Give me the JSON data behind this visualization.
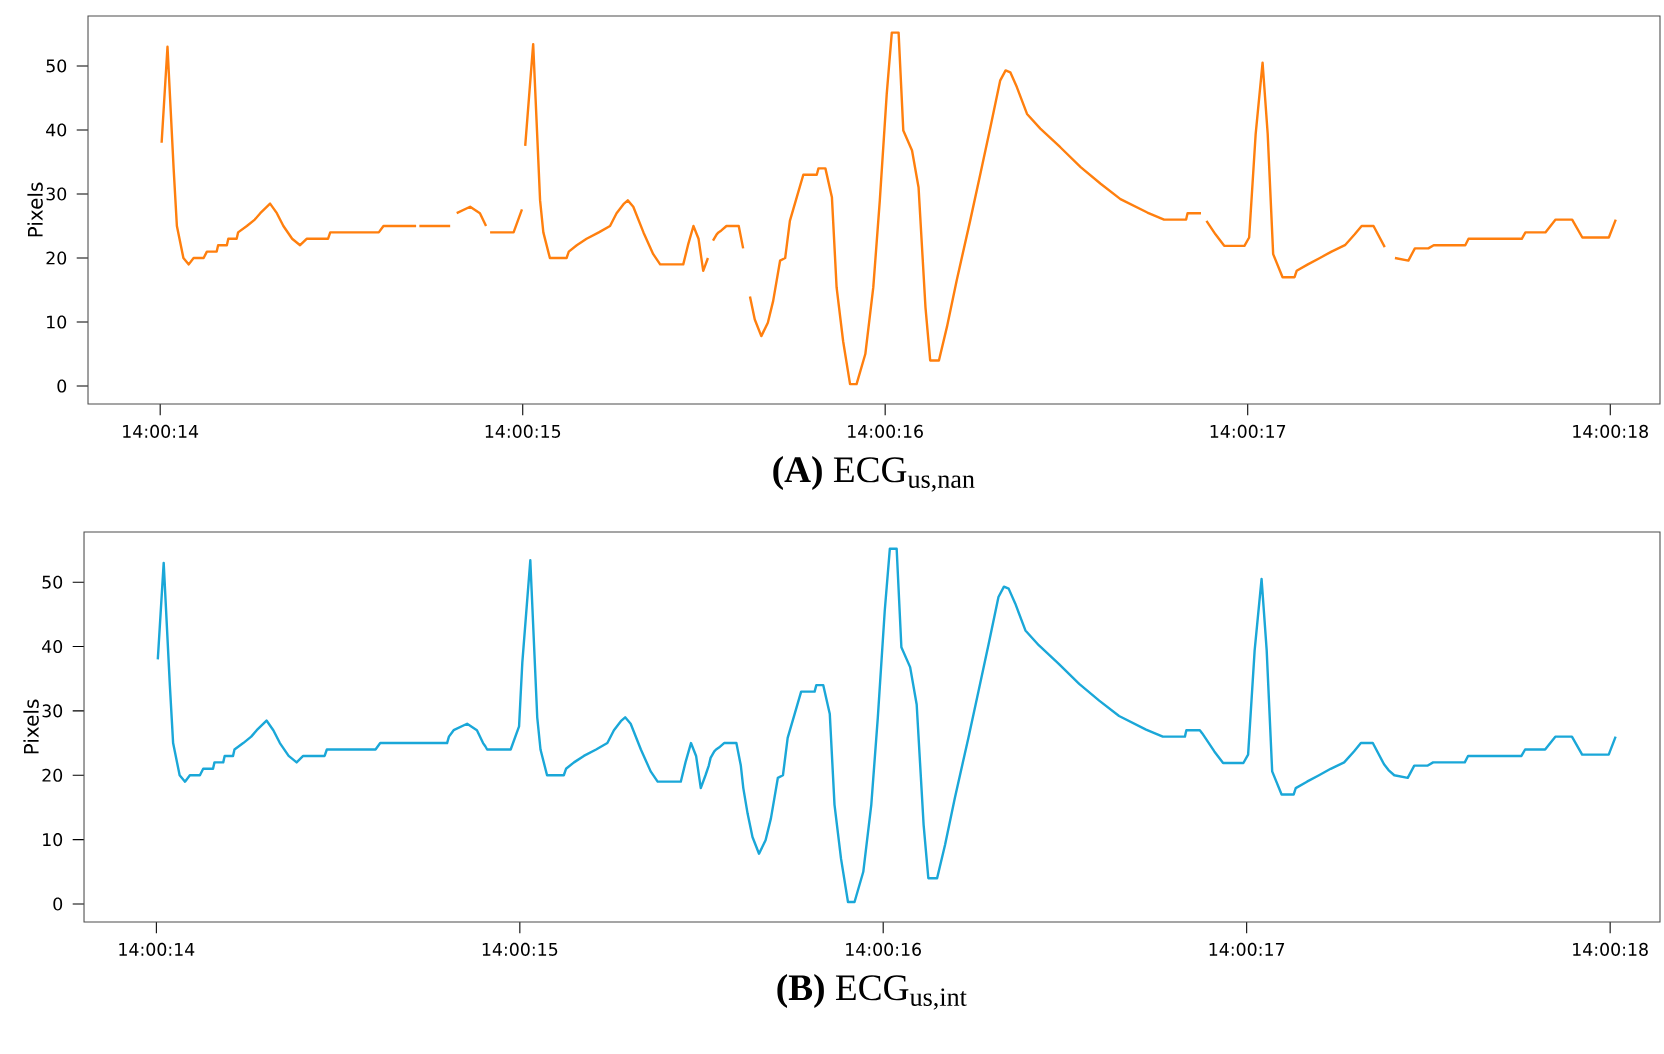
{
  "chart_data": [
    {
      "type": "line",
      "title": "**(A)** ECG$_{us,nan}$",
      "ylabel": "Pixels",
      "x": [
        14.00389,
        14.0038945,
        14.0038992,
        14.0039017,
        14.0039067,
        14.0039108,
        14.0039145,
        14.0039222,
        14.0039247,
        14.0039322,
        14.0039333,
        14.00394,
        14.0039411,
        14.0039475,
        14.0039486,
        14.0039553,
        14.0039614,
        14.0039656,
        14.0039731,
        14.0039783,
        14.0039833,
        14.00399,
        14.0039961,
        14.0040011,
        14.0040175,
        14.0040192,
        14.0040564,
        14.00406,
        14.004085,
        14.0040861,
        14.0040875,
        14.0041111,
        14.0041125,
        14.0041161,
        14.0041264,
        14.0041339,
        14.0041386,
        14.0041403,
        14.0041417,
        14.0041597,
        14.0041661,
        14.0041672,
        14.0041686,
        14.0041747,
        14.00418,
        14.0041825,
        14.0041875,
        14.0042003,
        14.004202,
        14.0042081,
        14.0042156,
        14.004225,
        14.0042336,
        14.0042386,
        14.0042439,
        14.0042472,
        14.0042514,
        14.0042592,
        14.0042667,
        14.004272,
        14.0042897,
        14.0042933,
        14.0042975,
        14.0043014,
        14.004305,
        14.0043086,
        14.0043111,
        14.0043125,
        14.0043153,
        14.0043167,
        14.0043189,
        14.0043228,
        14.0043322,
        14.0043356,
        14.0043375,
        14.0043408,
        14.0043445,
        14.0043495,
        14.0043545,
        14.0043586,
        14.0043639,
        14.0043678,
        14.0043714,
        14.0043767,
        14.0043817,
        14.004392,
        14.0043933,
        14.0043986,
        14.0044036,
        14.0044072,
        14.0044122,
        14.0044175,
        14.0044225,
        14.0044292,
        14.0044353,
        14.0044403,
        14.0044456,
        14.0044495,
        14.0044547,
        14.0044583,
        14.004465,
        14.00447,
        14.0044753,
        14.0044789,
        14.0044856,
        14.0044917,
        14.0044992,
        14.0045095,
        14.0045172,
        14.004525,
        14.0045325,
        14.0045367,
        14.0045403,
        14.0045453,
        14.0045531,
        14.0045633,
        14.0045786,
        14.0045942,
        14.0046095,
        14.0046247,
        14.0046453,
        14.0046581,
        14.004675,
        14.0046761,
        14.0046864,
        14.0046883,
        14.0046906,
        14.0046975,
        14.0047042,
        14.0047197,
        14.0047233,
        14.0047283,
        14.0047336,
        14.0047375,
        14.0047417,
        14.0047489,
        14.0047581,
        14.0047597,
        14.0047683,
        14.0047775,
        14.0047864,
        14.0047967,
        14.0048042,
        14.0048095,
        14.0048186,
        14.0048272,
        14.0048306,
        14.004835,
        14.0048453,
        14.0048503,
        14.0048606,
        14.0048647,
        14.0048889,
        14.0048914,
        14.0049322,
        14.004935,
        14.0049503,
        14.0049581,
        14.0049708,
        14.0049786,
        14.0049989,
        14.0050042
      ],
      "series": [
        {
          "color": "#ff7f0e",
          "values": [
            38,
            53,
            34,
            25,
            20,
            19,
            20,
            20,
            21,
            21,
            22,
            22,
            23,
            23,
            24,
            25,
            26,
            27,
            28.5,
            27,
            25,
            23,
            22,
            23,
            23,
            24,
            24,
            25,
            25,
            null,
            25,
            25,
            null,
            27,
            28,
            27,
            25,
            null,
            24,
            24,
            27.6,
            null,
            37.5,
            53.4,
            29,
            24,
            20,
            20,
            21,
            22,
            23,
            24,
            25,
            27,
            28.4,
            29,
            28,
            24,
            20.6,
            19,
            19,
            22,
            25,
            23,
            18,
            20,
            null,
            22.7,
            23.7,
            24,
            24.3,
            25,
            25,
            21.5,
            null,
            14,
            10.4,
            7.8,
            9.9,
            13.3,
            19.6,
            20,
            25.8,
            29.5,
            33,
            33,
            34,
            34,
            29.5,
            15.4,
            7,
            0.3,
            0.3,
            5,
            15.4,
            29,
            45.6,
            55.2,
            55.2,
            39.9,
            36.8,
            31,
            12.3,
            4,
            4,
            9.2,
            16.5,
            25.8,
            33,
            40.4,
            47.7,
            49.3,
            49,
            46.7,
            42.5,
            40.2,
            37.3,
            34.2,
            31.6,
            29.2,
            27.1,
            26,
            26,
            27,
            27,
            null,
            25.8,
            23.7,
            21.9,
            21.9,
            23.2,
            39.4,
            50.5,
            39.4,
            20.6,
            17,
            17,
            18,
            19,
            20,
            21,
            22,
            23.7,
            25,
            25,
            21.7,
            null,
            20,
            19.6,
            21.5,
            21.5,
            22,
            22,
            23,
            23,
            24,
            24,
            26,
            26,
            23.2,
            23.2,
            26
          ]
        }
      ],
      "xlim": [
        14.0038336,
        14.0050381
      ],
      "ylim": [
        -2.8,
        57.8
      ],
      "xticks": [
        {
          "value": 14.0038889,
          "label": "14:00:14"
        },
        {
          "value": 14.0041667,
          "label": "14:00:15"
        },
        {
          "value": 14.0044444,
          "label": "14:00:16"
        },
        {
          "value": 14.0047222,
          "label": "14:00:17"
        },
        {
          "value": 14.005,
          "label": "14:00:18"
        }
      ],
      "yticks": [
        0,
        10,
        20,
        30,
        40,
        50
      ]
    },
    {
      "type": "line",
      "title": "**(B)** ECG$_{us,int}$",
      "ylabel": "Pixels",
      "x": [
        14.00389,
        14.0038945,
        14.0038992,
        14.0039017,
        14.0039067,
        14.0039108,
        14.0039145,
        14.0039222,
        14.0039247,
        14.0039322,
        14.0039333,
        14.00394,
        14.0039411,
        14.0039475,
        14.0039486,
        14.0039553,
        14.0039614,
        14.0039656,
        14.0039731,
        14.0039783,
        14.0039833,
        14.00399,
        14.0039961,
        14.0040011,
        14.0040175,
        14.0040192,
        14.0040564,
        14.00406,
        14.004085,
        14.0040861,
        14.0040875,
        14.0041111,
        14.0041125,
        14.0041161,
        14.0041264,
        14.0041339,
        14.0041386,
        14.0041403,
        14.0041417,
        14.0041597,
        14.0041661,
        14.0041672,
        14.0041686,
        14.0041747,
        14.00418,
        14.0041825,
        14.0041875,
        14.0042003,
        14.004202,
        14.0042081,
        14.0042156,
        14.004225,
        14.0042336,
        14.0042386,
        14.0042439,
        14.0042472,
        14.0042514,
        14.0042592,
        14.0042667,
        14.004272,
        14.0042897,
        14.0042933,
        14.0042975,
        14.0043014,
        14.004305,
        14.0043086,
        14.0043111,
        14.0043125,
        14.0043153,
        14.0043167,
        14.0043189,
        14.0043228,
        14.0043322,
        14.0043356,
        14.0043375,
        14.0043408,
        14.0043445,
        14.0043495,
        14.0043545,
        14.0043586,
        14.0043639,
        14.0043678,
        14.0043714,
        14.0043767,
        14.0043817,
        14.004392,
        14.0043933,
        14.0043986,
        14.0044036,
        14.0044072,
        14.0044122,
        14.0044175,
        14.0044225,
        14.0044292,
        14.0044353,
        14.0044403,
        14.0044456,
        14.0044495,
        14.0044547,
        14.0044583,
        14.004465,
        14.00447,
        14.0044753,
        14.0044789,
        14.0044856,
        14.0044917,
        14.0044992,
        14.0045095,
        14.0045172,
        14.004525,
        14.0045325,
        14.0045367,
        14.0045403,
        14.0045453,
        14.0045531,
        14.0045633,
        14.0045786,
        14.0045942,
        14.0046095,
        14.0046247,
        14.0046453,
        14.0046581,
        14.004675,
        14.0046761,
        14.0046864,
        14.0046883,
        14.0046906,
        14.0046975,
        14.0047042,
        14.0047197,
        14.0047233,
        14.0047283,
        14.0047336,
        14.0047375,
        14.0047417,
        14.0047489,
        14.0047581,
        14.0047597,
        14.0047683,
        14.0047775,
        14.0047864,
        14.0047967,
        14.0048042,
        14.0048095,
        14.0048186,
        14.0048272,
        14.0048306,
        14.004835,
        14.0048453,
        14.0048503,
        14.0048606,
        14.0048647,
        14.0048889,
        14.0048914,
        14.0049322,
        14.004935,
        14.0049503,
        14.0049581,
        14.0049708,
        14.0049786,
        14.0049989,
        14.0050042
      ],
      "series": [
        {
          "color": "#1aa7d8",
          "values": [
            38,
            53,
            34,
            25,
            20,
            19,
            20,
            20,
            21,
            21,
            22,
            22,
            23,
            23,
            24,
            25,
            26,
            27,
            28.5,
            27,
            25,
            23,
            22,
            23,
            23,
            24,
            24,
            25,
            25,
            25,
            25,
            25,
            26,
            27,
            28,
            27,
            25,
            24.5,
            24,
            24,
            27.6,
            32,
            37.5,
            53.4,
            29,
            24,
            20,
            20,
            21,
            22,
            23,
            24,
            25,
            27,
            28.4,
            29,
            28,
            24,
            20.6,
            19,
            19,
            22,
            25,
            23,
            18,
            20,
            21.5,
            22.7,
            23.7,
            24,
            24.3,
            25,
            25,
            21.5,
            18,
            14,
            10.4,
            7.8,
            9.9,
            13.3,
            19.6,
            20,
            25.8,
            29.5,
            33,
            33,
            34,
            34,
            29.5,
            15.4,
            7,
            0.3,
            0.3,
            5,
            15.4,
            29,
            45.6,
            55.2,
            55.2,
            39.9,
            36.8,
            31,
            12.3,
            4,
            4,
            9.2,
            16.5,
            25.8,
            33,
            40.4,
            47.7,
            49.3,
            49,
            46.7,
            42.5,
            40.2,
            37.3,
            34.2,
            31.6,
            29.2,
            27.1,
            26,
            26,
            27,
            27,
            26.5,
            25.8,
            23.7,
            21.9,
            21.9,
            23.2,
            39.4,
            50.5,
            39.4,
            20.6,
            17,
            17,
            18,
            19,
            20,
            21,
            22,
            23.7,
            25,
            25,
            21.7,
            20.8,
            20,
            19.6,
            21.5,
            21.5,
            22,
            22,
            23,
            23,
            24,
            24,
            26,
            26,
            23.2,
            23.2,
            26
          ]
        }
      ],
      "xlim": [
        14.0038336,
        14.0050381
      ],
      "ylim": [
        -2.8,
        57.8
      ],
      "xticks": [
        {
          "value": 14.0038889,
          "label": "14:00:14"
        },
        {
          "value": 14.0041667,
          "label": "14:00:15"
        },
        {
          "value": 14.0044444,
          "label": "14:00:16"
        },
        {
          "value": 14.0047222,
          "label": "14:00:17"
        },
        {
          "value": 14.005,
          "label": "14:00:18"
        }
      ],
      "yticks": [
        0,
        10,
        20,
        30,
        40,
        50
      ]
    }
  ]
}
